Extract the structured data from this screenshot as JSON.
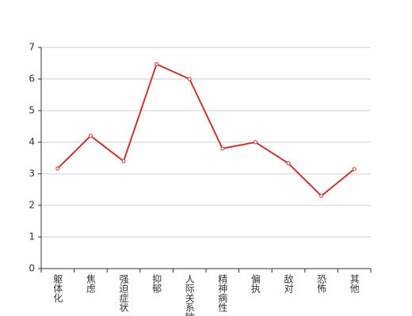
{
  "chart_data": {
    "type": "line",
    "categories": [
      "躯体化",
      "焦虑",
      "强迫症状",
      "抑郁",
      "人际关系敏感",
      "精神病性",
      "偏执",
      "敌对",
      "恐怖",
      "其他"
    ],
    "series": [
      {
        "color": "#c23531",
        "values": [
          3.17,
          4.2,
          3.4,
          6.47,
          6.0,
          3.8,
          4.0,
          3.33,
          2.3,
          3.15
        ]
      }
    ],
    "ylim": [
      0,
      7
    ],
    "yticks": [
      0,
      1,
      2,
      3,
      4,
      5,
      6,
      7
    ],
    "grid": true
  }
}
